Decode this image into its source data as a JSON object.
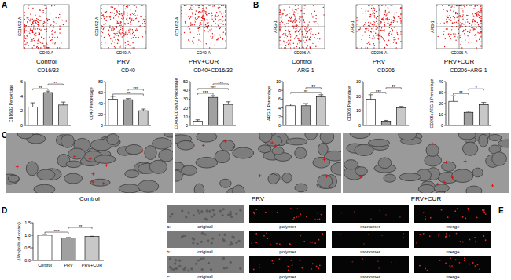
{
  "panel_labels": [
    "A",
    "B",
    "C",
    "D",
    "E"
  ],
  "flow_plots": [
    {
      "x_label": "CD40-A",
      "y_label": "CD16/32-A",
      "titles": [
        "Control",
        "PRV",
        "PRV+CUR"
      ]
    },
    {
      "x_label": "CD206-A",
      "y_label": "ARG-1",
      "titles": [
        "Control",
        "PRV",
        "PRV+CUR"
      ]
    }
  ],
  "chart_data": [
    {
      "type": "bar",
      "title": "CD16/32",
      "y_label": "CD16/32 Percentage",
      "categories": [
        null,
        null,
        null
      ],
      "values": [
        2.5,
        4.5,
        2.8
      ],
      "errors": [
        0.6,
        0.2,
        0.4
      ],
      "colors": [
        "#ffffff",
        "#a0a0a0",
        "#c8c8c8"
      ],
      "ylim": [
        0,
        6
      ],
      "yticks": [
        0,
        2,
        4,
        6
      ],
      "tick_labels": "y",
      "significance": [
        {
          "text": "**",
          "between": [
            0,
            1
          ]
        },
        {
          "text": "**",
          "between": [
            1,
            2
          ]
        }
      ]
    },
    {
      "type": "bar",
      "title": "CD40",
      "y_label": "CD40 Percentage",
      "categories": [
        null,
        null,
        null
      ],
      "values": [
        48,
        47,
        27
      ],
      "errors": [
        5,
        2,
        3
      ],
      "colors": [
        "#ffffff",
        "#a0a0a0",
        "#c8c8c8"
      ],
      "ylim": [
        0,
        80
      ],
      "yticks": [
        0,
        20,
        40,
        60,
        80
      ],
      "tick_labels": "y",
      "significance": [
        {
          "text": "**",
          "between": [
            0,
            2
          ]
        },
        {
          "text": "***",
          "between": [
            1,
            2
          ]
        }
      ]
    },
    {
      "type": "bar",
      "title": "CD40+CD16/32",
      "y_label": "CD40+CD16/32 Percentage",
      "categories": [
        null,
        null,
        null
      ],
      "values": [
        5,
        32,
        24
      ],
      "errors": [
        1.5,
        2,
        3
      ],
      "colors": [
        "#ffffff",
        "#a0a0a0",
        "#c8c8c8"
      ],
      "ylim": [
        0,
        50
      ],
      "yticks": [
        0,
        10,
        20,
        30,
        40,
        50
      ],
      "tick_labels": "y",
      "significance": [
        {
          "text": "***",
          "between": [
            0,
            1
          ]
        },
        {
          "text": "***",
          "between": [
            0,
            2
          ]
        },
        {
          "text": "***",
          "between": [
            1,
            2
          ]
        }
      ]
    },
    {
      "type": "bar",
      "title": "ARG-1",
      "y_label": "ARG-1 Percentage",
      "categories": [
        null,
        null,
        null
      ],
      "values": [
        4.5,
        4.5,
        6.5
      ],
      "errors": [
        0.4,
        0.5,
        0.5
      ],
      "colors": [
        "#ffffff",
        "#a0a0a0",
        "#c8c8c8"
      ],
      "ylim": [
        0,
        10
      ],
      "yticks": [
        0,
        2,
        4,
        6,
        8,
        10
      ],
      "tick_labels": "y",
      "significance": [
        {
          "text": "**",
          "between": [
            0,
            2
          ]
        },
        {
          "text": "**",
          "between": [
            1,
            2
          ]
        }
      ]
    },
    {
      "type": "bar",
      "title": "CD206",
      "y_label": "CD206 Percentage",
      "categories": [
        null,
        null,
        null
      ],
      "values": [
        18,
        3,
        12
      ],
      "errors": [
        3,
        0.5,
        1
      ],
      "colors": [
        "#ffffff",
        "#a0a0a0",
        "#c8c8c8"
      ],
      "ylim": [
        0,
        30
      ],
      "yticks": [
        0,
        10,
        20,
        30
      ],
      "tick_labels": "y",
      "significance": [
        {
          "text": "***",
          "between": [
            0,
            1
          ]
        },
        {
          "text": "**",
          "between": [
            1,
            2
          ]
        }
      ]
    },
    {
      "type": "bar",
      "title": "CD206+ARG-1",
      "y_label": "CD206+ARG-1 Percentage",
      "categories": [
        null,
        null,
        null
      ],
      "values": [
        22,
        12,
        19
      ],
      "errors": [
        5,
        1,
        2
      ],
      "colors": [
        "#ffffff",
        "#a0a0a0",
        "#c8c8c8"
      ],
      "ylim": [
        0,
        40
      ],
      "yticks": [
        0,
        10,
        20,
        30,
        40
      ],
      "tick_labels": "y",
      "significance": [
        {
          "text": "**",
          "between": [
            0,
            1
          ]
        },
        {
          "text": "*",
          "between": [
            1,
            2
          ]
        }
      ]
    },
    {
      "type": "bar",
      "y_label": "ΔΨm(folds of control)",
      "categories": [
        "Control",
        "PRV",
        "PRV+CUR"
      ],
      "values": [
        1.0,
        0.89,
        0.95
      ],
      "errors": [
        0.03,
        0.02,
        0.01
      ],
      "colors": [
        "#ffffff",
        "#a0a0a0",
        "#c8c8c8"
      ],
      "ylim": [
        0,
        1.5
      ],
      "yticks": [
        {
          "value": 0,
          "label": "0.0"
        },
        {
          "value": 0.5,
          "label": "0.5"
        },
        {
          "value": 1,
          "label": "1.0"
        },
        {
          "value": 1.5,
          "label": "1.5"
        }
      ],
      "significance": [
        {
          "text": "***",
          "between": [
            0,
            1
          ]
        },
        {
          "text": "**",
          "between": [
            1,
            2
          ]
        }
      ]
    }
  ],
  "tem": {
    "titles": [
      "Control",
      "PRV",
      "PRV+CUR"
    ]
  },
  "fluorescence": {
    "rows": [
      "a:",
      "b:",
      "c:"
    ],
    "columns": [
      "original",
      "polymer",
      "monomer",
      "merge"
    ]
  }
}
